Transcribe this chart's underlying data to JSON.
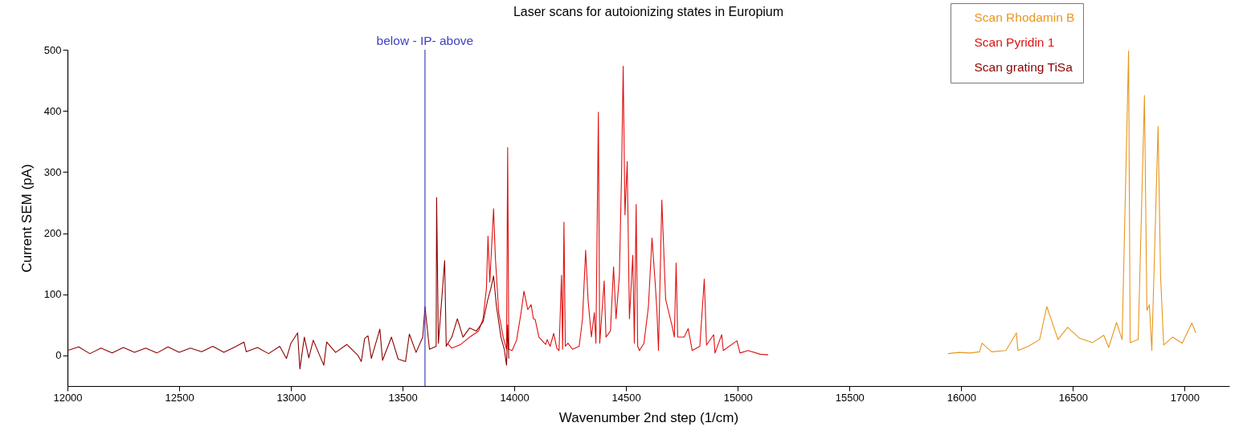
{
  "chart_data": {
    "type": "line",
    "title": "Laser scans for autoionizing states in Europium",
    "xlabel": "Wavenumber 2nd step (1/cm)",
    "ylabel": "Current SEM (pA)",
    "xlim": [
      12000,
      17200
    ],
    "xticks": [
      12000,
      12500,
      13000,
      13500,
      14000,
      14500,
      15000,
      15500,
      16000,
      16500,
      17000
    ],
    "ylim": [
      -50,
      500
    ],
    "yticks": [
      0,
      100,
      200,
      300,
      400,
      500
    ],
    "grid": false,
    "legend": "top right",
    "ref_lines": [
      {
        "axis": "x",
        "value": 13600,
        "label": "below - IP- above",
        "color": "#4040c0"
      }
    ],
    "series": [
      {
        "name": "Scan Rhodamin B",
        "color": "#e8961e",
        "x": [
          15940,
          15990,
          16040,
          16082,
          16093,
          16136,
          16200,
          16247,
          16254,
          16300,
          16351,
          16383,
          16433,
          16476,
          16530,
          16588,
          16638,
          16660,
          16695,
          16720,
          16749,
          16756,
          16792,
          16820,
          16831,
          16842,
          16853,
          16881,
          16892,
          16906,
          16946,
          16989,
          17032,
          17050
        ],
        "values": [
          3,
          5,
          4,
          6,
          20,
          6,
          8,
          37,
          8,
          15,
          26,
          80,
          26,
          46,
          28,
          21,
          33,
          13,
          54,
          26,
          498,
          21,
          26,
          425,
          74,
          83,
          8,
          375,
          131,
          17,
          30,
          20,
          53,
          37
        ]
      },
      {
        "name": "Scan Pyridin 1",
        "color": "#e01010",
        "x": [
          13700,
          13720,
          13760,
          13800,
          13840,
          13860,
          13875,
          13882,
          13890,
          13900,
          13907,
          13915,
          13930,
          13950,
          13965,
          13970,
          13975,
          13990,
          14010,
          14030,
          14043,
          14060,
          14075,
          14085,
          14093,
          14110,
          14140,
          14147,
          14160,
          14176,
          14190,
          14200,
          14211,
          14216,
          14222,
          14228,
          14240,
          14260,
          14290,
          14305,
          14319,
          14330,
          14345,
          14358,
          14365,
          14376,
          14382,
          14402,
          14410,
          14430,
          14444,
          14455,
          14470,
          14480,
          14487,
          14495,
          14505,
          14515,
          14530,
          14537,
          14545,
          14552,
          14560,
          14580,
          14600,
          14616,
          14630,
          14638,
          14645,
          14660,
          14677,
          14706,
          14716,
          14724,
          14731,
          14760,
          14778,
          14796,
          14830,
          14850,
          14860,
          14892,
          14898,
          14928,
          14935,
          14996,
          15010,
          15046,
          15100,
          15136
        ],
        "values": [
          20,
          12,
          18,
          30,
          40,
          60,
          110,
          195,
          120,
          190,
          240,
          160,
          70,
          30,
          10,
          340,
          10,
          8,
          25,
          70,
          105,
          75,
          83,
          60,
          59,
          30,
          18,
          26,
          15,
          36,
          12,
          8,
          131,
          10,
          218,
          15,
          20,
          10,
          15,
          60,
          172,
          90,
          30,
          70,
          20,
          398,
          20,
          122,
          30,
          40,
          145,
          60,
          130,
          300,
          473,
          230,
          317,
          60,
          164,
          20,
          247,
          15,
          8,
          20,
          80,
          192,
          120,
          73,
          8,
          254,
          92,
          48,
          30,
          151,
          30,
          30,
          44,
          8,
          15,
          125,
          17,
          34,
          4,
          34,
          8,
          24,
          4,
          8,
          2,
          1
        ]
      },
      {
        "name": "Scan grating TiSa",
        "color": "#8b0000",
        "x": [
          12000,
          12050,
          12100,
          12150,
          12200,
          12250,
          12300,
          12350,
          12400,
          12450,
          12500,
          12550,
          12600,
          12650,
          12700,
          12750,
          12790,
          12800,
          12850,
          12900,
          12950,
          12980,
          13000,
          13030,
          13040,
          13060,
          13080,
          13100,
          13147,
          13160,
          13200,
          13250,
          13300,
          13315,
          13330,
          13345,
          13360,
          13398,
          13410,
          13450,
          13480,
          13513,
          13530,
          13560,
          13590,
          13600,
          13620,
          13650,
          13652,
          13660,
          13688,
          13695,
          13720,
          13745,
          13770,
          13800,
          13830,
          13860,
          13880,
          13895,
          13907,
          13920,
          13940,
          13955,
          13965,
          13970,
          13975
        ],
        "values": [
          8,
          14,
          3,
          12,
          4,
          13,
          5,
          12,
          4,
          14,
          5,
          12,
          6,
          15,
          5,
          14,
          22,
          6,
          13,
          3,
          15,
          -5,
          20,
          37,
          -22,
          30,
          -4,
          25,
          -16,
          22,
          5,
          18,
          0,
          -10,
          28,
          32,
          -5,
          43,
          -8,
          30,
          -6,
          -10,
          35,
          5,
          30,
          80,
          10,
          15,
          258,
          20,
          155,
          15,
          30,
          60,
          30,
          45,
          40,
          55,
          90,
          110,
          130,
          80,
          30,
          10,
          -16,
          50,
          -5
        ]
      }
    ]
  }
}
